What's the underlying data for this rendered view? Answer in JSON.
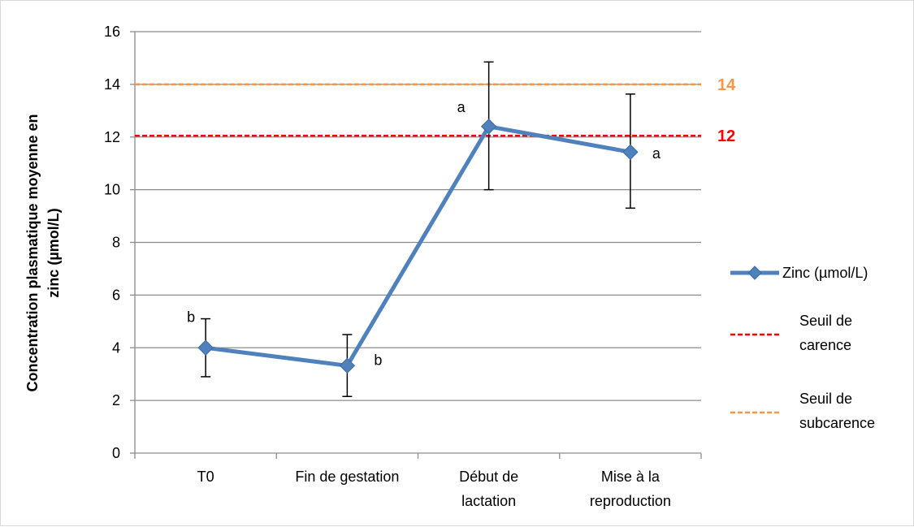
{
  "chart_data": {
    "type": "line",
    "ylabel": [
      "Concentration  plasmatique  moyenne en",
      "zinc (µmol/L)"
    ],
    "ylim": [
      0,
      16
    ],
    "yticks": [
      0,
      2,
      4,
      6,
      8,
      10,
      12,
      14,
      16
    ],
    "categories": [
      [
        "T0"
      ],
      [
        "Fin de gestation"
      ],
      [
        "Début de",
        "lactation"
      ],
      [
        "Mise à la",
        "reproduction"
      ]
    ],
    "grid": true,
    "legend_position": "right",
    "series": [
      {
        "name": "Zinc (µmol/L)",
        "color": "#4f81bd",
        "marker": "diamond",
        "values": [
          4.0,
          3.32,
          12.4,
          11.43
        ],
        "error_low": [
          2.9,
          2.15,
          10.0,
          9.3
        ],
        "error_high": [
          5.1,
          4.5,
          14.85,
          13.63
        ],
        "annotations": [
          "b",
          "b",
          "a",
          "a"
        ]
      }
    ],
    "thresholds": [
      {
        "name": [
          "Seuil de",
          "carence"
        ],
        "value": 12.05,
        "label": "12",
        "color": "#ff0000"
      },
      {
        "name": [
          "Seuil de",
          "subcarence"
        ],
        "value": 14.0,
        "label": "14",
        "color": "#f79646"
      }
    ]
  }
}
